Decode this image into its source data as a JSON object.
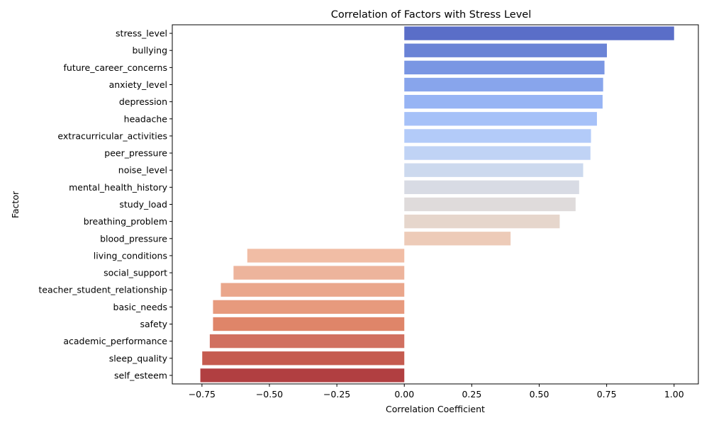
{
  "chart_data": {
    "type": "bar",
    "orientation": "horizontal",
    "title": "Correlation of Factors with Stress Level",
    "xlabel": "Correlation Coefficient",
    "ylabel": "Factor",
    "xlim": [
      -0.86,
      1.09
    ],
    "xticks": [
      -0.75,
      -0.5,
      -0.25,
      0.0,
      0.25,
      0.5,
      0.75,
      1.0
    ],
    "xtick_labels": [
      "−0.75",
      "−0.50",
      "−0.25",
      "0.00",
      "0.25",
      "0.50",
      "0.75",
      "1.00"
    ],
    "grid": false,
    "categories": [
      "stress_level",
      "bullying",
      "future_career_concerns",
      "anxiety_level",
      "depression",
      "headache",
      "extracurricular_activities",
      "peer_pressure",
      "noise_level",
      "mental_health_history",
      "study_load",
      "breathing_problem",
      "blood_pressure",
      "living_conditions",
      "social_support",
      "teacher_student_relationship",
      "basic_needs",
      "safety",
      "academic_performance",
      "sleep_quality",
      "self_esteem"
    ],
    "values": [
      1.0,
      0.751,
      0.742,
      0.737,
      0.735,
      0.714,
      0.692,
      0.69,
      0.663,
      0.648,
      0.635,
      0.576,
      0.394,
      -0.582,
      -0.633,
      -0.68,
      -0.709,
      -0.709,
      -0.721,
      -0.749,
      -0.756
    ],
    "colors": [
      "#5a6ec8",
      "#6a83d6",
      "#7a96e3",
      "#88a5ec",
      "#97b4f4",
      "#a6c1f8",
      "#b3cbf9",
      "#c0d3f5",
      "#ccd9ee",
      "#d8dbe4",
      "#dfdbdb",
      "#e6d6cc",
      "#edcbb8",
      "#f1bda5",
      "#edb49c",
      "#eaa68b",
      "#e79a7d",
      "#df8569",
      "#d17060",
      "#c55b4f",
      "#b13f41"
    ]
  }
}
